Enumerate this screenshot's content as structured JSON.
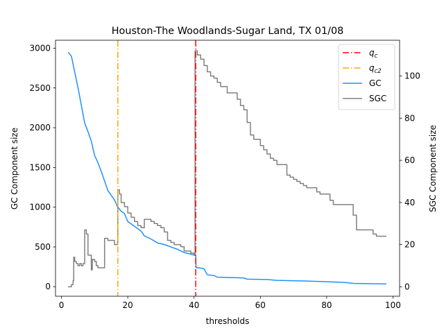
{
  "chart_data": {
    "type": "line",
    "title": "Houston-The Woodlands-Sugar Land, TX 01/08",
    "xlabel": "thresholds",
    "ylabel_left": "GC Component size",
    "ylabel_right": "SGC Component size",
    "xlim": [
      -1.8,
      102.0
    ],
    "ylim_left": [
      -120,
      3100
    ],
    "ylim_right": [
      -4.5,
      117
    ],
    "xticks": [
      0,
      20,
      40,
      60,
      80,
      100
    ],
    "yticks_left": [
      0,
      500,
      1000,
      1500,
      2000,
      2500,
      3000
    ],
    "yticks_right": [
      0,
      20,
      40,
      60,
      80,
      100
    ],
    "grid": false,
    "legend_position": "top-right",
    "colors": {
      "qc": "#ff0000",
      "qc2": "#ffa500",
      "gc": "#1e90ff",
      "sgc": "#808080",
      "axis": "#000000"
    },
    "legend": [
      {
        "label": "q_c",
        "base": "q",
        "sub": "c",
        "style": "dashdot",
        "color": "#ff0000"
      },
      {
        "label": "q_c2",
        "base": "q",
        "sub": "c2",
        "style": "dashdot",
        "color": "#ffa500"
      },
      {
        "label": "GC",
        "base": "GC",
        "sub": "",
        "style": "solid",
        "color": "#1e90ff"
      },
      {
        "label": "SGC",
        "base": "SGC",
        "sub": "",
        "style": "solid",
        "color": "#808080"
      }
    ],
    "vlines": [
      {
        "name": "q_c",
        "x": 40.5,
        "color": "#ff0000"
      },
      {
        "name": "q_c2",
        "x": 17.0,
        "color": "#ffa500"
      }
    ],
    "series": [
      {
        "name": "GC",
        "axis": "left",
        "color": "#1e90ff",
        "step": false,
        "points": [
          [
            2.0,
            2950
          ],
          [
            3.0,
            2900
          ],
          [
            4.0,
            2700
          ],
          [
            5.0,
            2500
          ],
          [
            6.0,
            2280
          ],
          [
            7.0,
            2060
          ],
          [
            8.0,
            1950
          ],
          [
            9.0,
            1830
          ],
          [
            10.0,
            1650
          ],
          [
            11.0,
            1560
          ],
          [
            12.0,
            1450
          ],
          [
            13.0,
            1330
          ],
          [
            14.0,
            1210
          ],
          [
            15.0,
            1150
          ],
          [
            16.0,
            1090
          ],
          [
            17.0,
            1000
          ],
          [
            18.0,
            950
          ],
          [
            19.0,
            920
          ],
          [
            20.0,
            820
          ],
          [
            22.0,
            760
          ],
          [
            24.0,
            700
          ],
          [
            25.0,
            640
          ],
          [
            27.0,
            600
          ],
          [
            29.0,
            550
          ],
          [
            31.0,
            530
          ],
          [
            33.0,
            500
          ],
          [
            35.0,
            470
          ],
          [
            37.0,
            430
          ],
          [
            39.0,
            410
          ],
          [
            40.5,
            390
          ],
          [
            40.6,
            240
          ],
          [
            42.0,
            235
          ],
          [
            43.0,
            225
          ],
          [
            44.0,
            150
          ],
          [
            46.0,
            140
          ],
          [
            47.0,
            120
          ],
          [
            55.0,
            110
          ],
          [
            56.0,
            95
          ],
          [
            62.0,
            90
          ],
          [
            65.0,
            80
          ],
          [
            73.0,
            72
          ],
          [
            78.0,
            65
          ],
          [
            85.0,
            55
          ],
          [
            88.0,
            42
          ],
          [
            98.0,
            35
          ]
        ]
      },
      {
        "name": "SGC",
        "axis": "right",
        "color": "#808080",
        "step": true,
        "points": [
          [
            2.0,
            0
          ],
          [
            3.0,
            1
          ],
          [
            3.5,
            3
          ],
          [
            3.7,
            14
          ],
          [
            4.0,
            12
          ],
          [
            4.5,
            11
          ],
          [
            5.0,
            10
          ],
          [
            5.5,
            11
          ],
          [
            6.0,
            10
          ],
          [
            6.5,
            11
          ],
          [
            7.0,
            27
          ],
          [
            7.5,
            25
          ],
          [
            8.0,
            15
          ],
          [
            9.0,
            8
          ],
          [
            9.3,
            13
          ],
          [
            10.0,
            12
          ],
          [
            10.5,
            10
          ],
          [
            11.0,
            9
          ],
          [
            12.0,
            9
          ],
          [
            13.0,
            23
          ],
          [
            14.0,
            22
          ],
          [
            15.0,
            22
          ],
          [
            16.0,
            20
          ],
          [
            16.9,
            21
          ],
          [
            17.0,
            46
          ],
          [
            17.5,
            44
          ],
          [
            18.0,
            40
          ],
          [
            19.0,
            38
          ],
          [
            20.0,
            35
          ],
          [
            21.0,
            33
          ],
          [
            22.0,
            31
          ],
          [
            23.0,
            29
          ],
          [
            24.0,
            28
          ],
          [
            25.0,
            32
          ],
          [
            26.0,
            32
          ],
          [
            27.0,
            31
          ],
          [
            28.0,
            30
          ],
          [
            29.0,
            29
          ],
          [
            30.0,
            28
          ],
          [
            31.0,
            26
          ],
          [
            32.0,
            22
          ],
          [
            33.0,
            21
          ],
          [
            34.0,
            20
          ],
          [
            36.0,
            19
          ],
          [
            37.0,
            17
          ],
          [
            38.0,
            17
          ],
          [
            39.0,
            16
          ],
          [
            40.0,
            15
          ],
          [
            40.3,
            112
          ],
          [
            41.0,
            110
          ],
          [
            42.0,
            108
          ],
          [
            43.0,
            105
          ],
          [
            44.0,
            102
          ],
          [
            45.0,
            100
          ],
          [
            46.0,
            99
          ],
          [
            47.0,
            97
          ],
          [
            48.0,
            95
          ],
          [
            50.0,
            92
          ],
          [
            52.0,
            92
          ],
          [
            53.0,
            89
          ],
          [
            54.0,
            86
          ],
          [
            55.0,
            84
          ],
          [
            56.0,
            78
          ],
          [
            57.0,
            72
          ],
          [
            58.0,
            70
          ],
          [
            60.0,
            67
          ],
          [
            61.0,
            65
          ],
          [
            62.0,
            63
          ],
          [
            63.0,
            61
          ],
          [
            64.0,
            60
          ],
          [
            65.0,
            58
          ],
          [
            67.0,
            58
          ],
          [
            68.0,
            53
          ],
          [
            69.0,
            52
          ],
          [
            70.0,
            51
          ],
          [
            71.0,
            50
          ],
          [
            72.0,
            49
          ],
          [
            73.0,
            48
          ],
          [
            74.0,
            47
          ],
          [
            76.0,
            47
          ],
          [
            77.0,
            45
          ],
          [
            78.0,
            44
          ],
          [
            80.0,
            44
          ],
          [
            81.0,
            41
          ],
          [
            82.0,
            39
          ],
          [
            83.0,
            39
          ],
          [
            84.0,
            39
          ],
          [
            85.0,
            39
          ],
          [
            88.0,
            34
          ],
          [
            89.0,
            27
          ],
          [
            93.0,
            27
          ],
          [
            94.0,
            25
          ],
          [
            95.0,
            24
          ],
          [
            98.0,
            24
          ]
        ]
      }
    ]
  }
}
